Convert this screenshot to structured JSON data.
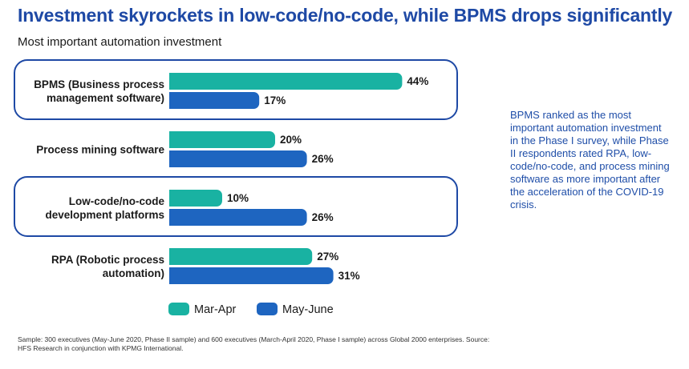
{
  "header": {
    "title": "Investment skyrockets in low-code/no-code, while BPMS drops significantly",
    "subtitle": "Most important automation investment"
  },
  "note": "BPMS ranked as the most important automation investment in the Phase I survey, while Phase II respondents rated RPA, low-code/no-code, and process mining software as more important after the acceleration of the COVID-19 crisis.",
  "footnote": "Sample: 300 executives (May-June 2020, Phase II sample) and 600 executives (March-April 2020, Phase I sample) across Global 2000 enterprises. Source: HFS Research in conjunction with KPMG International.",
  "colors": {
    "mar_apr": "#19b2a2",
    "may_june": "#1e65c0",
    "highlight_outline": "#1e49a5",
    "title": "#1e49a5"
  },
  "chart_data": {
    "type": "bar",
    "orientation": "horizontal",
    "categories": [
      [
        "BPMS (Business process",
        "management software)"
      ],
      [
        "Process mining software"
      ],
      [
        "Low-code/no-code",
        "development platforms"
      ],
      [
        "RPA (Robotic process",
        "automation)"
      ]
    ],
    "series": [
      {
        "name": "Mar-Apr",
        "values": [
          44,
          20,
          10,
          27
        ],
        "labels": [
          "44%",
          "20%",
          "10%",
          "27%"
        ]
      },
      {
        "name": "May-June",
        "values": [
          17,
          26,
          26,
          31
        ],
        "labels": [
          "17%",
          "26%",
          "26%",
          "31%"
        ]
      }
    ],
    "unit": "%",
    "highlighted_categories": [
      0,
      2
    ],
    "legend": "bottom",
    "grid": false
  }
}
